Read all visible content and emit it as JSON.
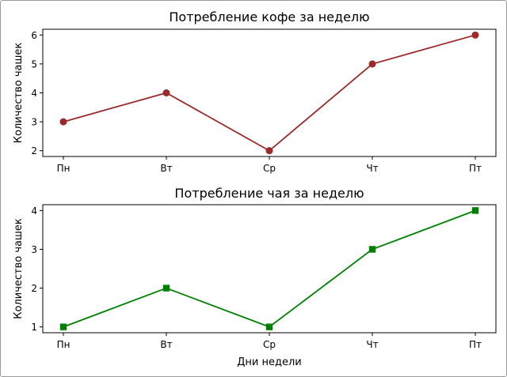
{
  "chart_data": [
    {
      "type": "line",
      "title": "Потребление кофе за неделю",
      "xlabel": "",
      "ylabel": "Количество чашек",
      "categories": [
        "Пн",
        "Вт",
        "Ср",
        "Чт",
        "Пт"
      ],
      "values": [
        3,
        4,
        2,
        5,
        6
      ],
      "ylim": [
        1.8,
        6.2
      ],
      "yticks": [
        2,
        3,
        4,
        5,
        6
      ],
      "marker": "circle",
      "color": "#9b2a2a",
      "grid": false
    },
    {
      "type": "line",
      "title": "Потребление чая за неделю",
      "xlabel": "Дни недели",
      "ylabel": "Количество чашек",
      "categories": [
        "Пн",
        "Вт",
        "Ср",
        "Чт",
        "Пт"
      ],
      "values": [
        1,
        2,
        1,
        3,
        4
      ],
      "ylim": [
        0.85,
        4.15
      ],
      "yticks": [
        1,
        2,
        3,
        4
      ],
      "marker": "square",
      "color": "#008000",
      "grid": false
    }
  ]
}
